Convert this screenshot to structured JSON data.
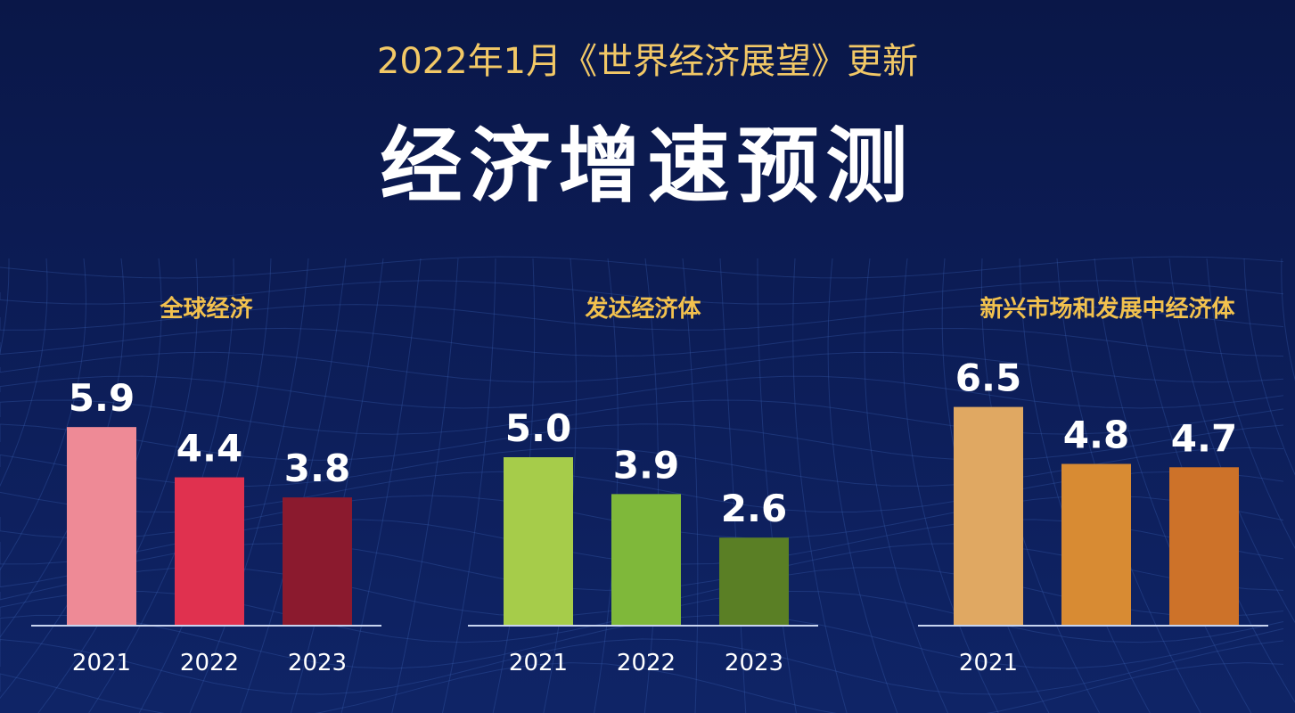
{
  "header": {
    "subtitle": "2022年1月《世界经济展望》更新",
    "title": "经济增速预测"
  },
  "colors": {
    "background": "#0b1a4e",
    "panel_title": "#f2c14e",
    "label": "#ffffff"
  },
  "chart_data": [
    {
      "type": "bar",
      "title": "全球经济",
      "categories": [
        "2021",
        "2022",
        "2023"
      ],
      "values": [
        5.9,
        4.4,
        3.8
      ],
      "colors": [
        "#ee8a96",
        "#e0314f",
        "#8b1a2e"
      ],
      "data_labels": [
        "5.9",
        "4.4",
        "3.8"
      ],
      "grid": false
    },
    {
      "type": "bar",
      "title": "发达经济体",
      "categories": [
        "2021",
        "2022",
        "2023"
      ],
      "values": [
        5.0,
        3.9,
        2.6
      ],
      "colors": [
        "#a6cc4a",
        "#7fb83a",
        "#5a7f25"
      ],
      "data_labels": [
        "5.0",
        "3.9",
        "2.6"
      ],
      "grid": false
    },
    {
      "type": "bar",
      "title": "新兴市场和发展中经济体",
      "categories": [
        "2021",
        "",
        ""
      ],
      "values": [
        6.5,
        4.8,
        4.7
      ],
      "colors": [
        "#e0a862",
        "#d88b33",
        "#cd7229"
      ],
      "data_labels": [
        "6.5",
        "4.8",
        "4.7"
      ],
      "grid": false
    }
  ]
}
